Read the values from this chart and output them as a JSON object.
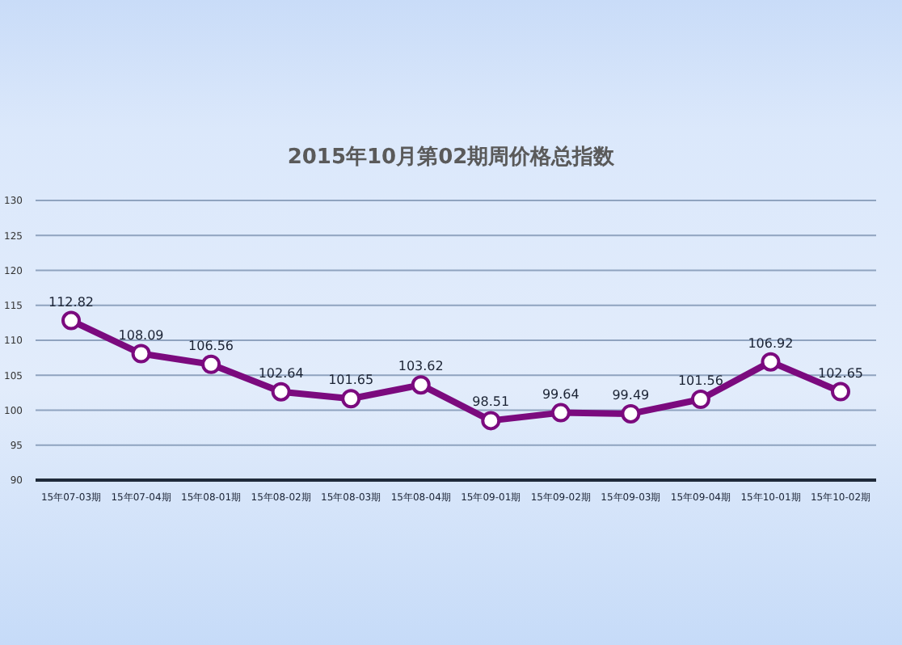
{
  "chart_data": {
    "type": "line",
    "title": "2015年10月第02期周价格总指数",
    "categories": [
      "15年07-03期",
      "15年07-04期",
      "15年08-01期",
      "15年08-02期",
      "15年08-03期",
      "15年08-04期",
      "15年09-01期",
      "15年09-02期",
      "15年09-03期",
      "15年09-04期",
      "15年10-01期",
      "15年10-02期"
    ],
    "series": [
      {
        "color": "#7b0a7e",
        "values": [
          112.82,
          108.09,
          106.56,
          102.64,
          101.65,
          103.62,
          98.51,
          99.64,
          99.49,
          101.56,
          106.92,
          102.65
        ]
      }
    ],
    "ylim": [
      90,
      130
    ],
    "yticks": [
      90,
      95,
      100,
      105,
      110,
      115,
      120,
      125,
      130
    ],
    "grid": "y",
    "marker": "circle",
    "line_style": "solid",
    "data_labels": true
  }
}
